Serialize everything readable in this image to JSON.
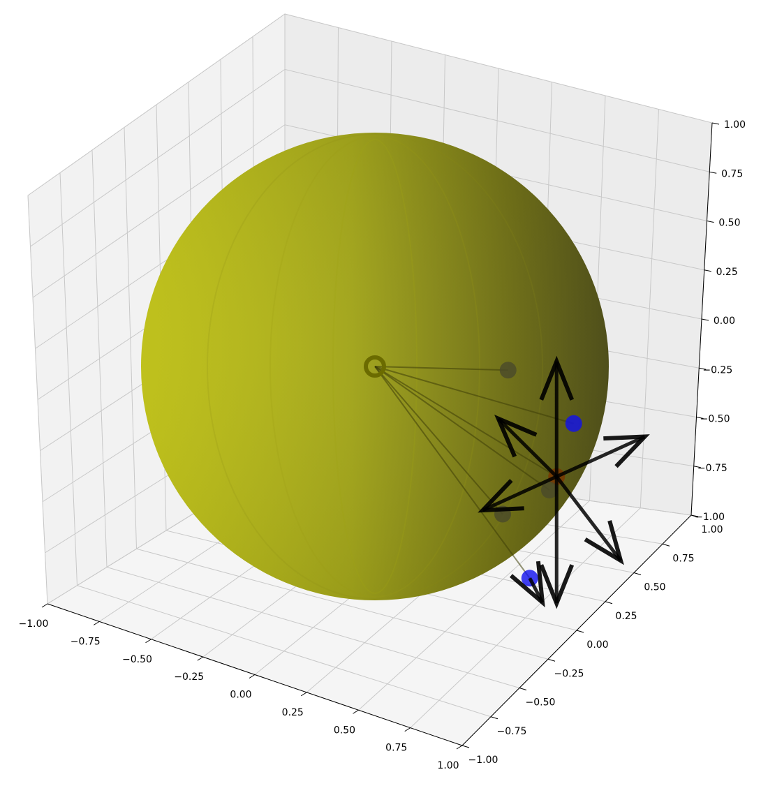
{
  "chart_data": {
    "type": "scatter",
    "projection": "3d",
    "title": "",
    "xlabel": "",
    "ylabel": "",
    "zlabel": "",
    "grid": true,
    "xlim": [
      -1.0,
      1.0
    ],
    "ylim": [
      -1.0,
      1.0
    ],
    "zlim": [
      -1.0,
      1.0
    ],
    "x_ticks": [
      "−1.00",
      "−0.75",
      "−0.50",
      "−0.25",
      "0.00",
      "0.25",
      "0.50",
      "0.75",
      "1.00"
    ],
    "y_ticks": [
      "−1.00",
      "−0.75",
      "−0.50",
      "−0.25",
      "0.00",
      "0.25",
      "0.50",
      "0.75",
      "1.00"
    ],
    "z_ticks": [
      "−1.00",
      "−0.75",
      "−0.50",
      "−0.25",
      "0.00",
      "0.25",
      "0.50",
      "0.75",
      "1.00"
    ],
    "surface": {
      "shape": "sphere",
      "center": [
        0,
        0,
        0
      ],
      "radius": 1.0,
      "color": "#b5bc15"
    },
    "origin_marker": {
      "x": 0.0,
      "y": 0.0,
      "z": 0.0,
      "style": "ring",
      "color": "#6b6b00"
    },
    "points": [
      {
        "x": 0.55,
        "y": 0.85,
        "z": 0.05,
        "color": "#4a4a2a"
      },
      {
        "x": 0.95,
        "y": 0.35,
        "z": -0.1,
        "color": "#1010ee"
      },
      {
        "x": 0.85,
        "y": 0.45,
        "z": -0.35,
        "color": "#7a3500"
      },
      {
        "x": 0.8,
        "y": 0.55,
        "z": -0.42,
        "color": "#4a4a2a"
      },
      {
        "x": 0.6,
        "y": 0.3,
        "z": -0.55,
        "color": "#4a4a2a"
      },
      {
        "x": 0.75,
        "y": 0.2,
        "z": -0.8,
        "color": "#1010ee"
      }
    ],
    "vectors": [
      {
        "from": [
          0.85,
          0.45,
          -0.35
        ],
        "to": [
          1.3,
          0.4,
          -0.1
        ]
      },
      {
        "from": [
          0.85,
          0.45,
          -0.35
        ],
        "to": [
          1.2,
          0.25,
          -0.65
        ]
      },
      {
        "from": [
          0.85,
          0.45,
          -0.35
        ],
        "to": [
          0.85,
          0.45,
          0.15
        ]
      },
      {
        "from": [
          0.85,
          0.45,
          -0.35
        ],
        "to": [
          0.55,
          0.5,
          -0.15
        ]
      },
      {
        "from": [
          0.85,
          0.45,
          -0.35
        ],
        "to": [
          0.5,
          0.3,
          -0.55
        ]
      },
      {
        "from": [
          0.85,
          0.45,
          -0.35
        ],
        "to": [
          0.85,
          0.45,
          -0.9
        ]
      },
      {
        "from": [
          0.75,
          0.2,
          -0.8
        ],
        "to": [
          0.8,
          0.3,
          -0.9
        ]
      }
    ],
    "guide_lines": [
      {
        "from": [
          0,
          0,
          0
        ],
        "to": [
          0.55,
          0.85,
          0.05
        ]
      },
      {
        "from": [
          0,
          0,
          0
        ],
        "to": [
          0.95,
          0.35,
          -0.1
        ]
      },
      {
        "from": [
          0,
          0,
          0
        ],
        "to": [
          0.85,
          0.45,
          -0.35
        ]
      },
      {
        "from": [
          0,
          0,
          0
        ],
        "to": [
          0.8,
          0.55,
          -0.42
        ]
      },
      {
        "from": [
          0,
          0,
          0
        ],
        "to": [
          0.6,
          0.3,
          -0.55
        ]
      },
      {
        "from": [
          0,
          0,
          0
        ],
        "to": [
          0.75,
          0.2,
          -0.8
        ]
      }
    ]
  }
}
